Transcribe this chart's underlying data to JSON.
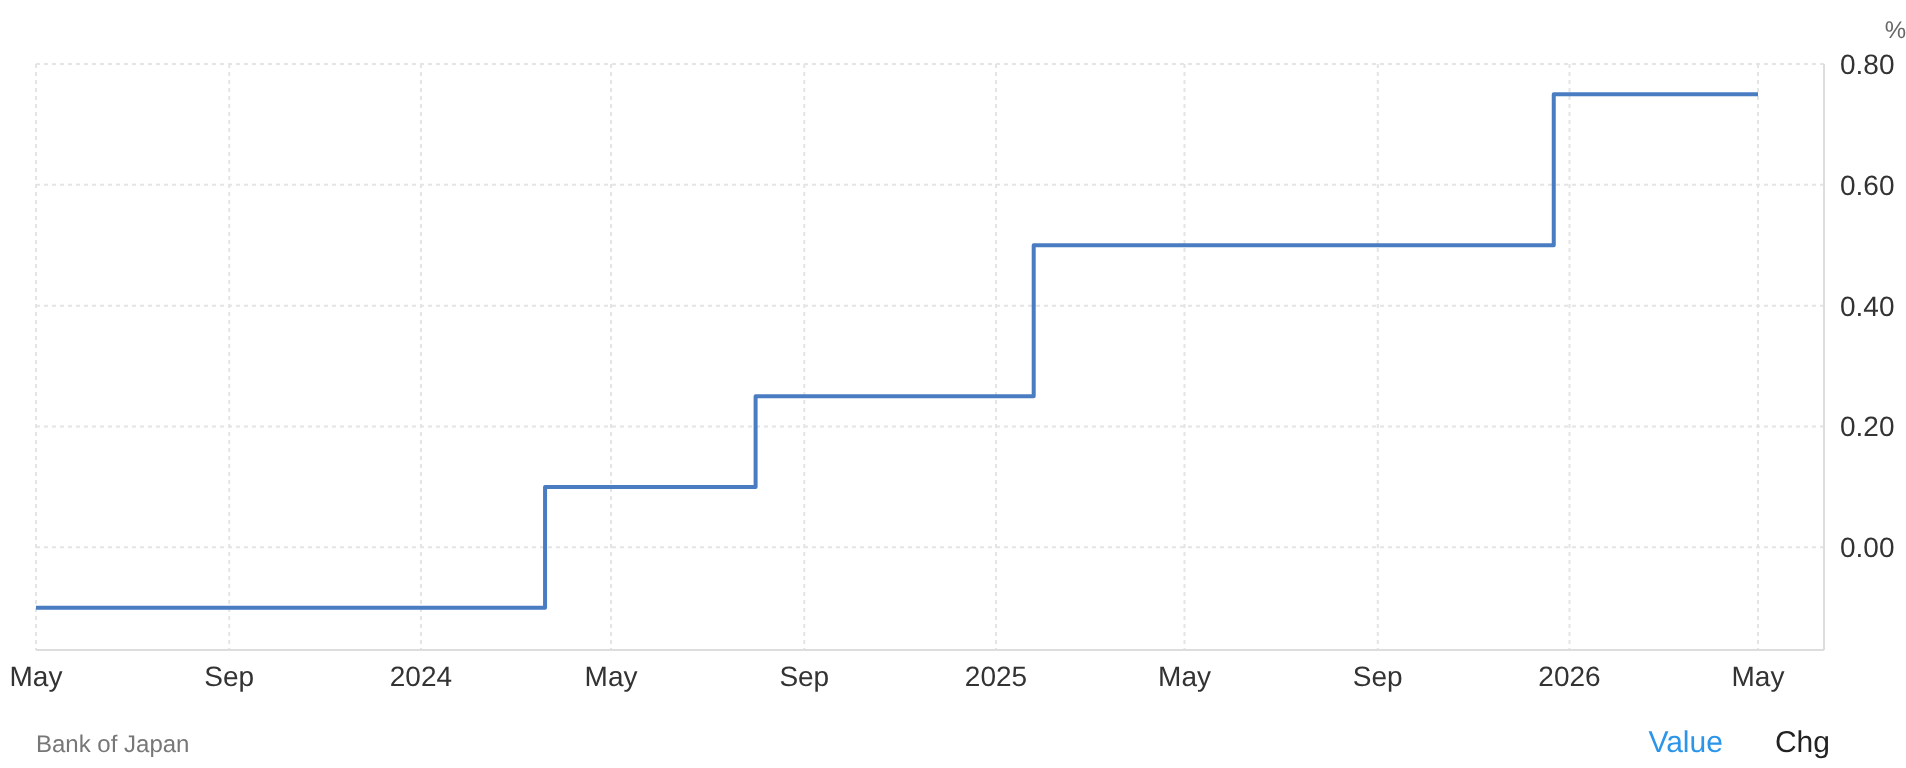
{
  "chart_data": {
    "type": "step",
    "ylabel": "%",
    "x": [
      "2023-05-01",
      "2024-03-20",
      "2024-08-01",
      "2025-01-25",
      "2025-12-22",
      "2026-05-01"
    ],
    "series": [
      {
        "color": "#4a7cc2",
        "values": [
          -0.1,
          0.1,
          0.25,
          0.5,
          0.75,
          0.75
        ]
      }
    ],
    "xlim": [
      "2023-05-01",
      "2026-06-12"
    ],
    "xticks": [
      {
        "value": "2023-05-01",
        "label": "May"
      },
      {
        "value": "2023-09-01",
        "label": "Sep"
      },
      {
        "value": "2024-01-01",
        "label": "2024"
      },
      {
        "value": "2024-05-01",
        "label": "May"
      },
      {
        "value": "2024-09-01",
        "label": "Sep"
      },
      {
        "value": "2025-01-01",
        "label": "2025"
      },
      {
        "value": "2025-05-01",
        "label": "May"
      },
      {
        "value": "2025-09-01",
        "label": "Sep"
      },
      {
        "value": "2026-01-01",
        "label": "2026"
      },
      {
        "value": "2026-05-01",
        "label": "May"
      }
    ],
    "ylim": [
      -0.17,
      0.8
    ],
    "yticks": [
      {
        "value": 0,
        "label": "0.00"
      },
      {
        "value": 0.2,
        "label": "0.20"
      },
      {
        "value": 0.4,
        "label": "0.40"
      },
      {
        "value": 0.6,
        "label": "0.60"
      },
      {
        "value": 0.8,
        "label": "0.80"
      }
    ],
    "grid": true,
    "marker": "none",
    "line_style": "solid",
    "annotations": [
      "Bank of Japan",
      "Value",
      "Chg"
    ]
  }
}
